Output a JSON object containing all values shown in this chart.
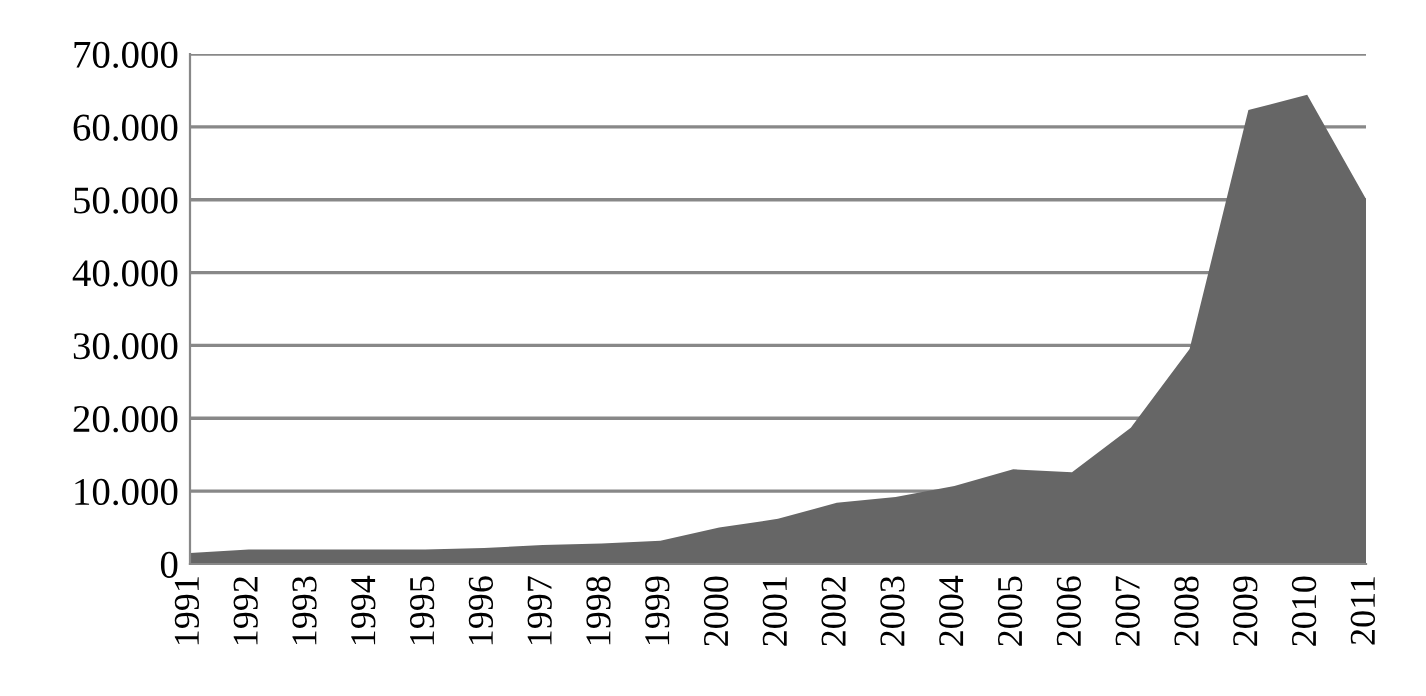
{
  "chart_data": {
    "type": "area",
    "categories": [
      "1991",
      "1992",
      "1993",
      "1994",
      "1995",
      "1996",
      "1997",
      "1998",
      "1999",
      "2000",
      "2001",
      "2002",
      "2003",
      "2004",
      "2005",
      "2006",
      "2007",
      "2008",
      "2009",
      "2010",
      "2011"
    ],
    "series": [
      {
        "color": "#666666",
        "values": [
          1500,
          2000,
          2000,
          2000,
          2000,
          2200,
          2600,
          2800,
          3200,
          5000,
          6200,
          8400,
          9200,
          10700,
          13000,
          12600,
          18700,
          29500,
          62300,
          64400,
          50100
        ]
      }
    ],
    "ylim": [
      0,
      70000
    ],
    "yticks": [
      0,
      {
        "value": 10000,
        "label": "10.000"
      },
      {
        "value": 20000,
        "label": "20.000"
      },
      {
        "value": 30000,
        "label": "30.000"
      },
      {
        "value": 40000,
        "label": "40.000"
      },
      {
        "value": 50000,
        "label": "50.000"
      },
      {
        "value": 60000,
        "label": "60.000"
      },
      {
        "value": 70000,
        "label": "70.000"
      }
    ],
    "grid": "y",
    "legend": false
  }
}
